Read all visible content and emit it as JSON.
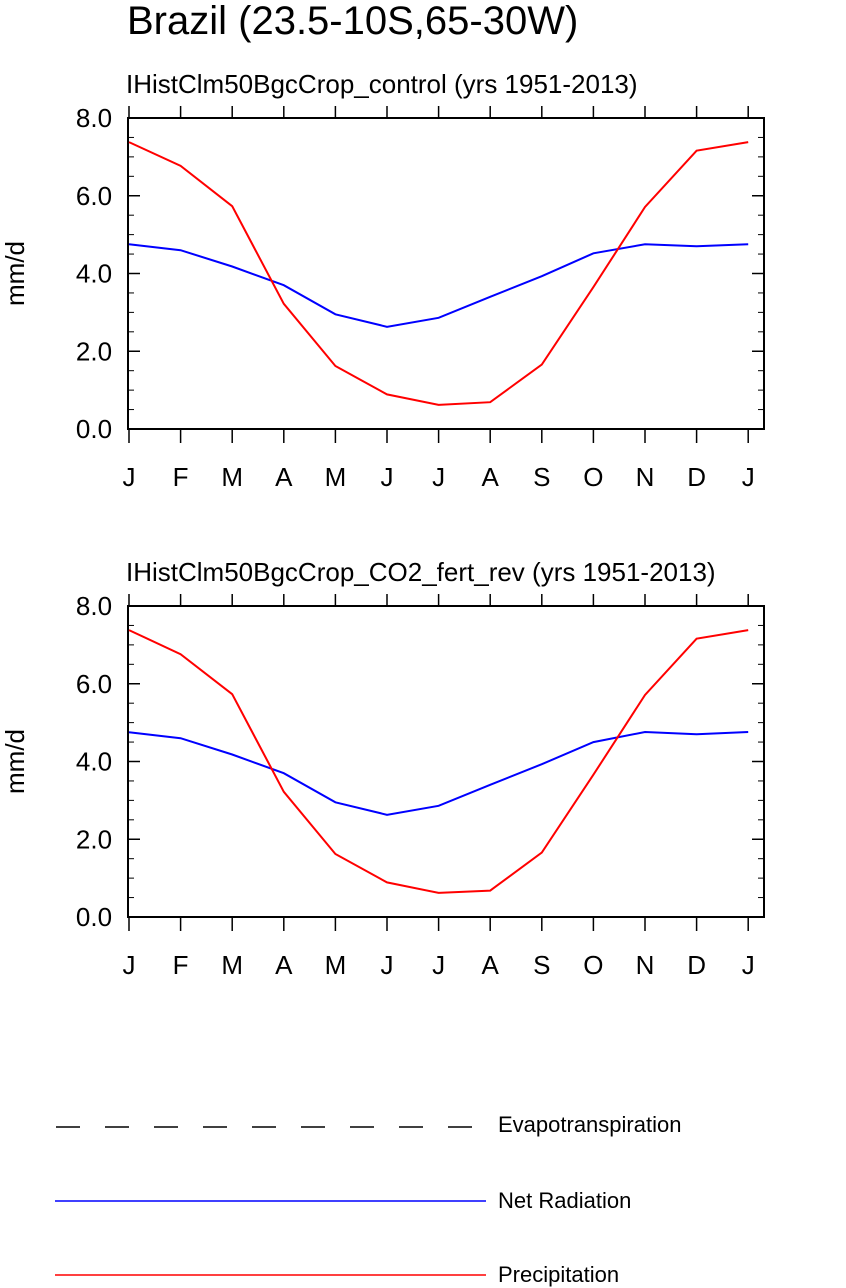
{
  "title": "Brazil (23.5-10S,65-30W)",
  "legend": [
    {
      "label": "Evapotranspiration",
      "color": "#000000",
      "style": "dashed"
    },
    {
      "label": "Net Radiation",
      "color": "#0000ff",
      "style": "solid"
    },
    {
      "label": "Precipitation",
      "color": "#ff0000",
      "style": "solid"
    }
  ],
  "chart_data": [
    {
      "type": "line",
      "title": "IHistClm50BgcCrop_control (yrs 1951-2013)",
      "ylabel": "mm/d",
      "xlabel": "",
      "categories": [
        "J",
        "F",
        "M",
        "A",
        "M",
        "J",
        "J",
        "A",
        "S",
        "O",
        "N",
        "D",
        "J"
      ],
      "ylim": [
        0,
        8
      ],
      "yticks": [
        "0.0",
        "2.0",
        "4.0",
        "6.0",
        "8.0"
      ],
      "grid": false,
      "series": [
        {
          "name": "Net Radiation",
          "color": "#0000ff",
          "values": [
            4.75,
            4.6,
            4.18,
            3.7,
            2.95,
            2.63,
            2.86,
            3.4,
            3.93,
            4.52,
            4.75,
            4.7,
            4.75
          ]
        },
        {
          "name": "Precipitation",
          "color": "#ff0000",
          "values": [
            7.38,
            6.77,
            5.73,
            3.22,
            1.62,
            0.89,
            0.62,
            0.69,
            1.66,
            3.65,
            5.71,
            7.16,
            7.38
          ]
        }
      ]
    },
    {
      "type": "line",
      "title": "IHistClm50BgcCrop_CO2_fert_rev (yrs 1951-2013)",
      "ylabel": "mm/d",
      "xlabel": "",
      "categories": [
        "J",
        "F",
        "M",
        "A",
        "M",
        "J",
        "J",
        "A",
        "S",
        "O",
        "N",
        "D",
        "J"
      ],
      "ylim": [
        0,
        8
      ],
      "yticks": [
        "0.0",
        "2.0",
        "4.0",
        "6.0",
        "8.0"
      ],
      "grid": false,
      "series": [
        {
          "name": "Net Radiation",
          "color": "#0000ff",
          "values": [
            4.75,
            4.6,
            4.18,
            3.7,
            2.95,
            2.63,
            2.86,
            3.4,
            3.93,
            4.5,
            4.76,
            4.7,
            4.76
          ]
        },
        {
          "name": "Precipitation",
          "color": "#ff0000",
          "values": [
            7.38,
            6.76,
            5.73,
            3.22,
            1.62,
            0.89,
            0.62,
            0.68,
            1.66,
            3.66,
            5.71,
            7.16,
            7.38
          ]
        }
      ]
    }
  ]
}
